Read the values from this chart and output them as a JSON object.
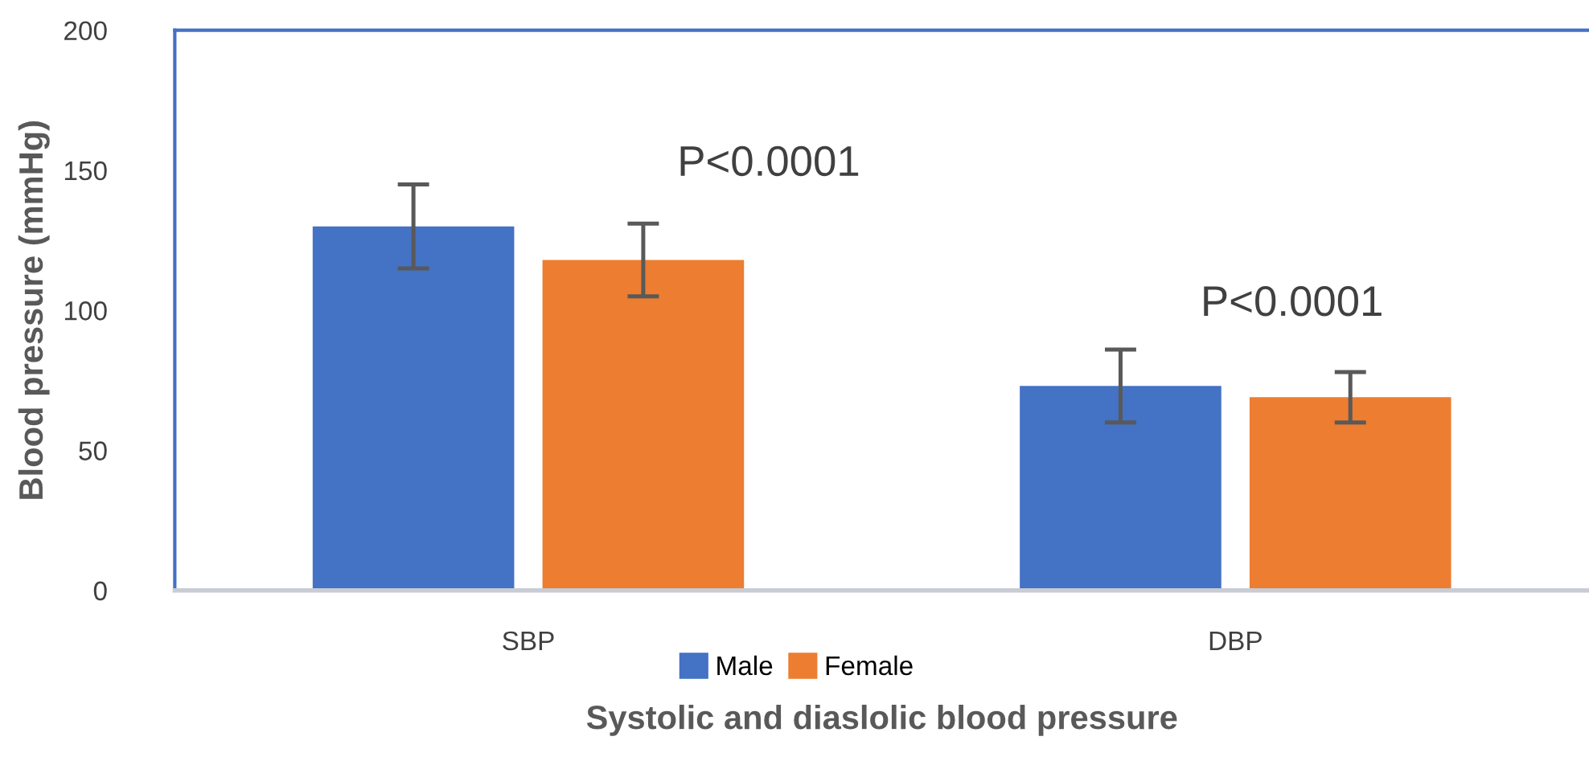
{
  "chart_data": {
    "type": "bar",
    "xlabel": "Systolic and diaslolic blood pressure",
    "ylabel": "Blood pressure (mmHg)",
    "categories": [
      "SBP",
      "DBP"
    ],
    "series": [
      {
        "name": "Male",
        "color": "#4472c4",
        "values": [
          130,
          73
        ],
        "errors": [
          15,
          13
        ]
      },
      {
        "name": "Female",
        "color": "#ed7d31",
        "values": [
          118,
          69
        ],
        "errors": [
          13,
          9
        ]
      }
    ],
    "ylim": [
      0,
      200
    ],
    "yticks": [
      0,
      50,
      100,
      150,
      200
    ],
    "grid": false,
    "legend": "bottom",
    "annotations": [
      "P<0.0001",
      "P<0.0001"
    ]
  }
}
